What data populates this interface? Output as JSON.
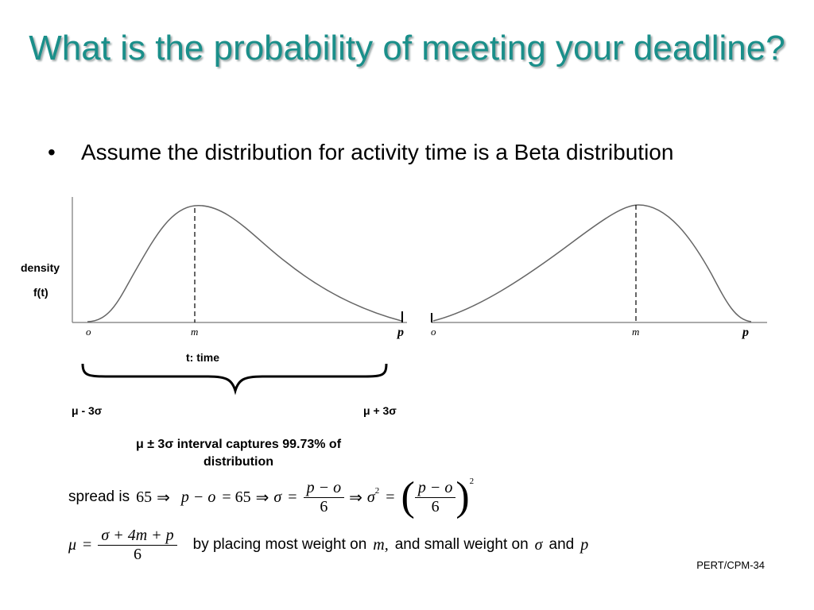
{
  "title": "What is the probability of meeting your deadline?",
  "bullet": "Assume the distribution for activity time is a Beta distribution",
  "bullet_symbol": "•",
  "figure": {
    "left": {
      "ylabel_line1": "density",
      "ylabel_line2": "f(t)",
      "tick_o": "o",
      "tick_m": "m",
      "tick_p": "p",
      "xlabel": "t: time",
      "lower": "μ - 3σ",
      "upper": "μ + 3σ"
    },
    "right": {
      "tick_o": "o",
      "tick_m": "m",
      "tick_p": "p"
    },
    "caption": "μ ± 3σ interval captures 99.73% of distribution"
  },
  "formula1": {
    "spread_label": "spread is",
    "spread_value": "65",
    "implies": "⇒",
    "p_minus_o": "p − o",
    "equals_65": "= 65",
    "sigma": "σ",
    "equals": "=",
    "six": "6",
    "sigma_sq_base": "σ",
    "sq": "2"
  },
  "formula2": {
    "mu": "μ",
    "equals": "=",
    "numerator": "σ + 4m + p",
    "denominator": "6",
    "text_a": "by placing most weight on",
    "m": "m,",
    "text_b": "and small weight on",
    "sigma": "σ",
    "and": "and",
    "p": "p"
  },
  "footer": "PERT/CPM-34",
  "colors": {
    "title": "#1a8f8a"
  }
}
